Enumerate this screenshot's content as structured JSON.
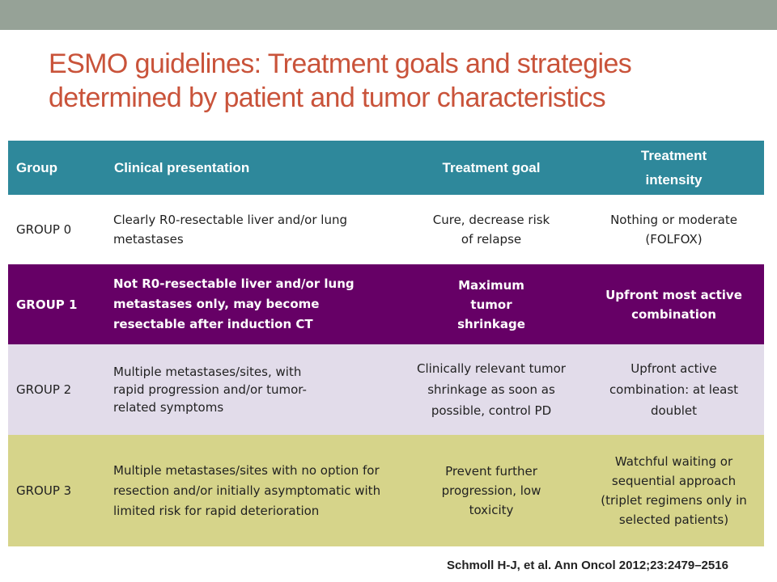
{
  "slide": {
    "title": "ESMO guidelines: Treatment goals and strategies determined by patient and tumor characteristics",
    "citation": "Schmoll H-J, et al. Ann Oncol 2012;23:2479–2516"
  },
  "table": {
    "headers": [
      "Group",
      "Clinical presentation",
      "Treatment goal",
      "Treatment intensity"
    ],
    "rows": [
      {
        "group": "GROUP 0",
        "presentation": "Clearly R0-resectable liver and/or lung metastases",
        "goal": "Cure, decrease risk of relapse",
        "intensity": "Nothing or moderate (FOLFOX)"
      },
      {
        "group": "GROUP 1",
        "presentation": "Not R0-resectable liver and/or lung metastases only, may become resectable after induction CT",
        "goal": "Maximum tumor shrinkage",
        "intensity": "Upfront most active combination"
      },
      {
        "group": "GROUP 2",
        "presentation": "Multiple metastases/sites, with rapid progression and/or tumor-related symptoms",
        "goal": "Clinically relevant tumor shrinkage as soon as possible, control PD",
        "intensity": "Upfront active combination: at least doublet"
      },
      {
        "group": "GROUP 3",
        "presentation": "Multiple metastases/sites with no option for resection and/or initially asymptomatic with limited risk for rapid deterioration",
        "goal": "Prevent further progression, low toxicity",
        "intensity": "Watchful waiting or sequential approach (triplet regimens only in selected patients)"
      }
    ]
  },
  "colors": {
    "top_bar": "#96a297",
    "title": "#c9533a",
    "header_bg": "#2e889b",
    "group1_bg": "#660066",
    "group2_bg": "#e2dcea",
    "group3_bg": "#d6d48a"
  }
}
